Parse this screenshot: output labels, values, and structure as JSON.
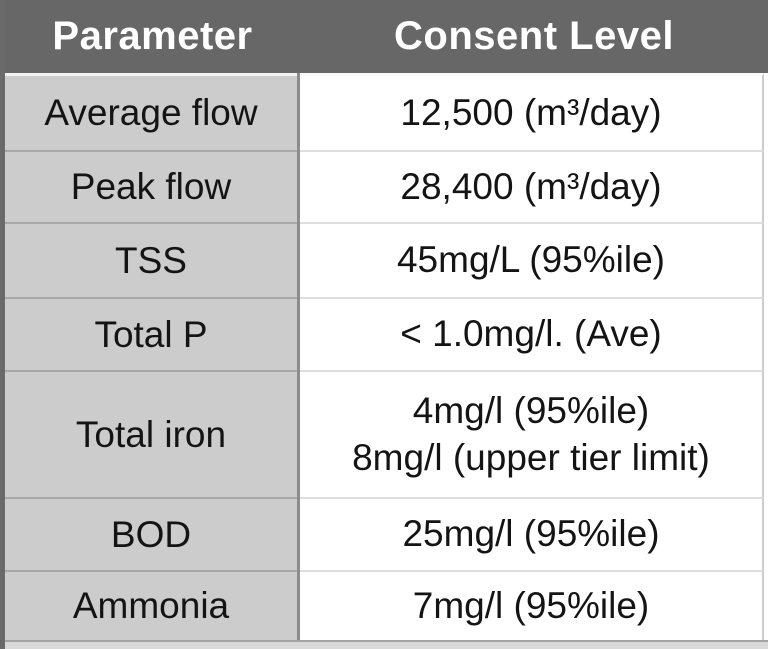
{
  "table": {
    "columns": [
      "Parameter",
      "Consent Level"
    ],
    "rows": [
      {
        "parameter": "Average flow",
        "consent_level": "12,500 (m³/day)"
      },
      {
        "parameter": "Peak flow",
        "consent_level": "28,400 (m³/day)"
      },
      {
        "parameter": "TSS",
        "consent_level": "45mg/L (95%ile)"
      },
      {
        "parameter": "Total P",
        "consent_level": "< 1.0mg/l. (Ave)"
      },
      {
        "parameter": "Total iron",
        "consent_level": "4mg/l (95%ile)\n8mg/l (upper tier limit)"
      },
      {
        "parameter": "BOD",
        "consent_level": "25mg/l (95%ile)"
      },
      {
        "parameter": "Ammonia",
        "consent_level": "7mg/l (95%ile)"
      }
    ]
  },
  "colors": {
    "header_bg": "#676767",
    "header_text": "#ffffff",
    "param_cell_bg": "#cccccc",
    "value_cell_bg": "#ffffff",
    "body_text": "#141414",
    "column_divider": "#8c8c8c",
    "outer_left_border": "#6a6a6a",
    "row_divider_left": "#a8a8a8",
    "row_divider_right": "#dedede",
    "right_border": "#cccccc",
    "bottom_strip": "#d9d9d9",
    "bottom_line": "#a3a3a3"
  },
  "chart_data": {
    "type": "table",
    "columns": [
      "Parameter",
      "Consent Level"
    ],
    "rows": [
      [
        "Average flow",
        "12,500 (m³/day)"
      ],
      [
        "Peak flow",
        "28,400 (m³/day)"
      ],
      [
        "TSS",
        "45mg/L (95%ile)"
      ],
      [
        "Total P",
        "< 1.0mg/l. (Ave)"
      ],
      [
        "Total iron",
        "4mg/l (95%ile); 8mg/l (upper tier limit)"
      ],
      [
        "BOD",
        "25mg/l (95%ile)"
      ],
      [
        "Ammonia",
        "7mg/l (95%ile)"
      ]
    ]
  }
}
